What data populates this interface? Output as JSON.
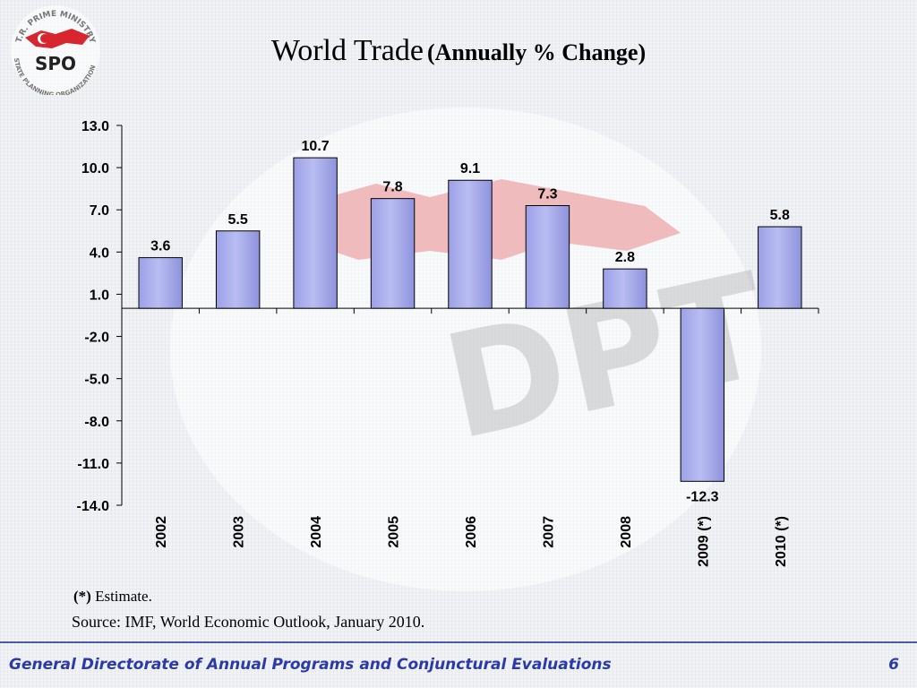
{
  "logo": {
    "arc_text": "T.R. PRIME MINISTRY",
    "bottom_text": "STATE PLANNING ORGANIZATION",
    "abbr": "SPO"
  },
  "title": {
    "main": "World Trade",
    "sub": "(Annually % Change)"
  },
  "chart_data": {
    "type": "bar",
    "categories": [
      "2002",
      "2003",
      "2004",
      "2005",
      "2006",
      "2007",
      "2008",
      "2009 (*)",
      "2010 (*)"
    ],
    "values": [
      3.6,
      5.5,
      10.7,
      7.8,
      9.1,
      7.3,
      2.8,
      -12.3,
      5.8
    ],
    "data_labels": [
      "3.6",
      "5.5",
      "10.7",
      "7.8",
      "9.1",
      "7.3",
      "2.8",
      "-12.3",
      "5.8"
    ],
    "y_ticks": [
      13.0,
      10.0,
      7.0,
      4.0,
      1.0,
      -2.0,
      -5.0,
      -8.0,
      -11.0,
      -14.0
    ],
    "y_tick_labels": [
      "13.0",
      "10.0",
      "7.0",
      "4.0",
      "1.0",
      "-2.0",
      "-5.0",
      "-8.0",
      "-11.0",
      "-14.0"
    ],
    "ylim": [
      -14.0,
      13.0
    ],
    "title": "World Trade (Annually % Change)",
    "xlabel": "",
    "ylabel": "",
    "grid": false,
    "bar_color": "#b9bdf2"
  },
  "notes": {
    "estimate_marker": "(*)",
    "estimate_text": "Estimate",
    "estimate_period": ".",
    "source": "Source: IMF, World Economic Outlook, January 2010."
  },
  "footer": {
    "org": "General Directorate of Annual Programs and Conjunctural Evaluations",
    "page": "6"
  },
  "colors": {
    "footer_text": "#2a3aa8",
    "footer_line": "#4a58b8",
    "logo_red": "#d8262e"
  }
}
